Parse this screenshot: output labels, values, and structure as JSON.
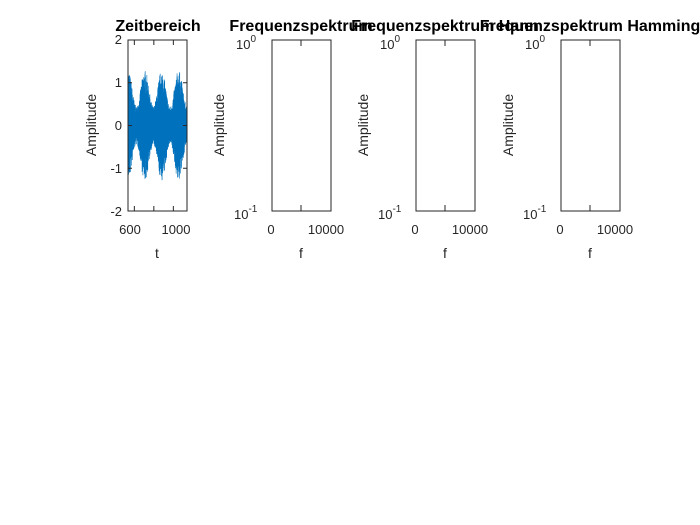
{
  "colors": {
    "signal": "#0072BD",
    "axes": "#262626",
    "background": "#ffffff"
  },
  "chart_data": [
    {
      "type": "line",
      "title": "Zeitbereich",
      "xlabel": "t",
      "ylabel": "Amplitude",
      "xlim": [
        535,
        1140
      ],
      "ylim": [
        -2,
        2
      ],
      "xticks": [
        600,
        1000
      ],
      "yticks": [
        -2,
        -1,
        0,
        1,
        2
      ],
      "yscale": "linear",
      "signal": {
        "envelope_min": 0.45,
        "envelope_max": 1.3,
        "envelope_periods": 3.5
      },
      "grid": false
    },
    {
      "type": "line",
      "title": "Frequenzspektrum",
      "xlabel": "f",
      "ylabel": "Amplitude",
      "xlim": [
        -1500,
        12500
      ],
      "ylim": [
        0.1,
        1
      ],
      "xticks": [
        0,
        10000
      ],
      "yticks": [
        0.1,
        1
      ],
      "ytick_labels": [
        {
          "base": "10",
          "exp": "-1"
        },
        {
          "base": "10",
          "exp": "0"
        }
      ],
      "yscale": "log",
      "grid": false
    },
    {
      "type": "line",
      "title": "Frequenzspektrum Hann",
      "xlabel": "f",
      "ylabel": "Amplitude",
      "xlim": [
        -1500,
        12500
      ],
      "ylim": [
        0.1,
        1
      ],
      "xticks": [
        0,
        10000
      ],
      "yticks": [
        0.1,
        1
      ],
      "ytick_labels": [
        {
          "base": "10",
          "exp": "-1"
        },
        {
          "base": "10",
          "exp": "0"
        }
      ],
      "yscale": "log",
      "grid": false
    },
    {
      "type": "line",
      "title": "Frequenzspektrum Hamming",
      "xlabel": "f",
      "ylabel": "Amplitude",
      "xlim": [
        -1500,
        12500
      ],
      "ylim": [
        0.1,
        1
      ],
      "xticks": [
        0,
        10000
      ],
      "yticks": [
        0.1,
        1
      ],
      "ytick_labels": [
        {
          "base": "10",
          "exp": "-1"
        },
        {
          "base": "10",
          "exp": "0"
        }
      ],
      "yscale": "log",
      "grid": false
    }
  ]
}
